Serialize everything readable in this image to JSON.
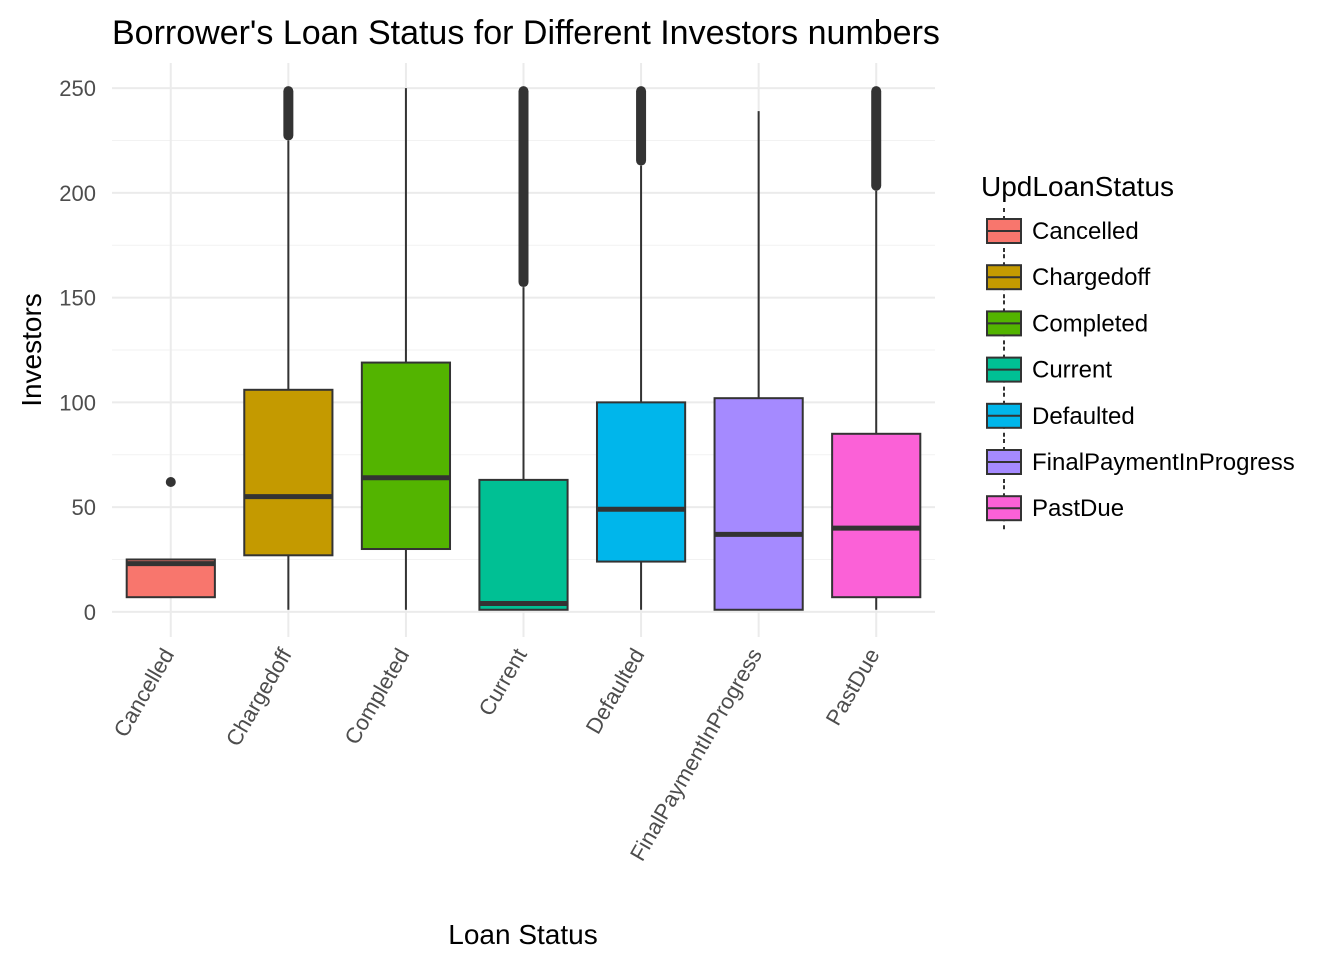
{
  "chart_data": {
    "type": "box",
    "title": "Borrower's Loan Status for Different Investors numbers",
    "xlabel": "Loan Status",
    "ylabel": "Investors",
    "ylim": [
      -12,
      262
    ],
    "yticks": [
      0,
      50,
      100,
      150,
      200,
      250
    ],
    "grid": true,
    "legend": {
      "title": "UpdLoanStatus",
      "position": "right"
    },
    "categories": [
      "Cancelled",
      "Chargedoff",
      "Completed",
      "Current",
      "Defaulted",
      "FinalPaymentInProgress",
      "PastDue"
    ],
    "series": [
      {
        "name": "Cancelled",
        "color": "#F8766D",
        "min": 7,
        "q1": 7,
        "median": 23,
        "q3": 25,
        "max": 25,
        "outliers": [
          62
        ]
      },
      {
        "name": "Chargedoff",
        "color": "#C49A00",
        "min": 1,
        "q1": 27,
        "median": 55,
        "q3": 106,
        "max": 225,
        "outlier_range": [
          226,
          250
        ]
      },
      {
        "name": "Completed",
        "color": "#53B400",
        "min": 1,
        "q1": 30,
        "median": 64,
        "q3": 119,
        "max": 250,
        "outlier_range": null
      },
      {
        "name": "Current",
        "color": "#00C094",
        "min": 1,
        "q1": 1,
        "median": 4,
        "q3": 63,
        "max": 155,
        "outlier_range": [
          156,
          250
        ]
      },
      {
        "name": "Defaulted",
        "color": "#00B6EB",
        "min": 1,
        "q1": 24,
        "median": 49,
        "q3": 100,
        "max": 213,
        "outlier_range": [
          214,
          250
        ]
      },
      {
        "name": "FinalPaymentInProgress",
        "color": "#A58AFF",
        "min": 1,
        "q1": 1,
        "median": 37,
        "q3": 102,
        "max": 239,
        "outlier_range": null
      },
      {
        "name": "PastDue",
        "color": "#FB61D7",
        "min": 1,
        "q1": 7,
        "median": 40,
        "q3": 85,
        "max": 201,
        "outlier_range": [
          202,
          250
        ]
      }
    ]
  }
}
